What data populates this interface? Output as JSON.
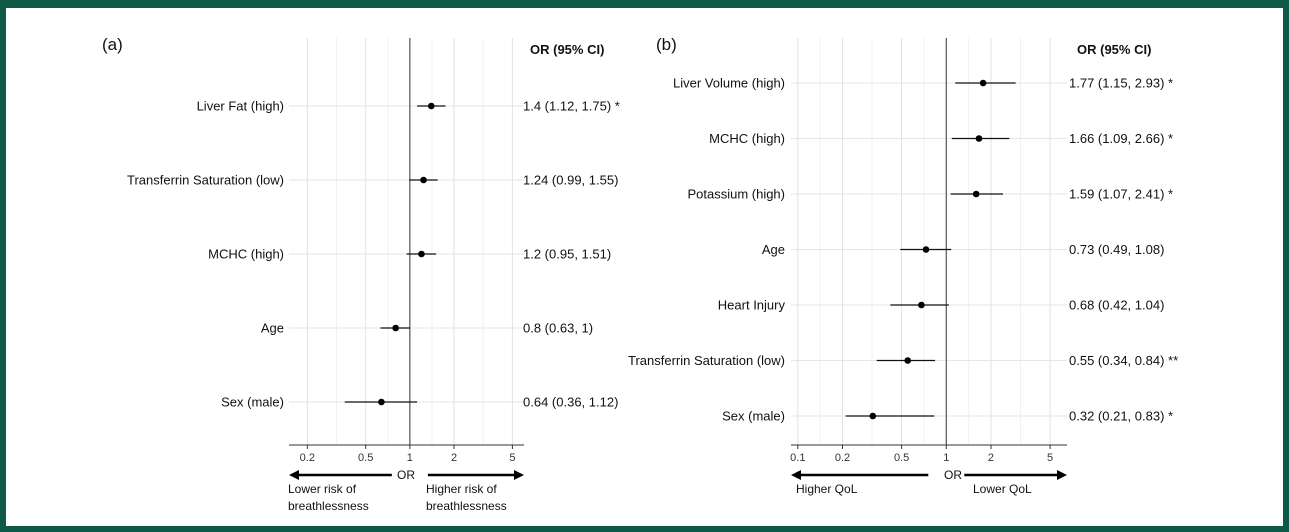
{
  "chart_data": [
    {
      "type": "forest",
      "panel_label": "(a)",
      "ci_header": "OR (95% CI)",
      "xlabel": "OR",
      "xscale": "log",
      "xlim": [
        0.15,
        6
      ],
      "xticks": [
        0.2,
        0.5,
        1,
        2,
        5
      ],
      "xtick_labels": [
        "0.2",
        "0.5",
        "1",
        "2",
        "5"
      ],
      "reference_line": 1,
      "grid": true,
      "direction_left": [
        "Lower risk of",
        "breathlessness"
      ],
      "direction_right": [
        "Higher risk of",
        "breathlessness"
      ],
      "rows": [
        {
          "label": "Liver Fat (high)",
          "or": 1.4,
          "lower": 1.12,
          "upper": 1.75,
          "ci_text": "1.4 (1.12, 1.75) *"
        },
        {
          "label": "Transferrin Saturation (low)",
          "or": 1.24,
          "lower": 0.99,
          "upper": 1.55,
          "ci_text": "1.24 (0.99, 1.55)"
        },
        {
          "label": "MCHC (high)",
          "or": 1.2,
          "lower": 0.95,
          "upper": 1.51,
          "ci_text": "1.2 (0.95, 1.51)"
        },
        {
          "label": "Age",
          "or": 0.8,
          "lower": 0.63,
          "upper": 1.0,
          "ci_text": "0.8 (0.63, 1)"
        },
        {
          "label": "Sex (male)",
          "or": 0.64,
          "lower": 0.36,
          "upper": 1.12,
          "ci_text": "0.64 (0.36, 1.12)"
        }
      ]
    },
    {
      "type": "forest",
      "panel_label": "(b)",
      "ci_header": "OR (95% CI)",
      "xlabel": "OR",
      "xscale": "log",
      "xlim": [
        0.09,
        6.5
      ],
      "xticks": [
        0.1,
        0.2,
        0.5,
        1,
        2,
        5
      ],
      "xtick_labels": [
        "0.1",
        "0.2",
        "0.5",
        "1",
        "2",
        "5"
      ],
      "reference_line": 1,
      "grid": true,
      "direction_left": [
        "Higher QoL"
      ],
      "direction_right": [
        "Lower QoL"
      ],
      "rows": [
        {
          "label": "Liver Volume (high)",
          "or": 1.77,
          "lower": 1.15,
          "upper": 2.93,
          "ci_text": "1.77 (1.15, 2.93) *"
        },
        {
          "label": "MCHC (high)",
          "or": 1.66,
          "lower": 1.09,
          "upper": 2.66,
          "ci_text": "1.66 (1.09, 2.66) *"
        },
        {
          "label": "Potassium (high)",
          "or": 1.59,
          "lower": 1.07,
          "upper": 2.41,
          "ci_text": "1.59 (1.07, 2.41) *"
        },
        {
          "label": "Age",
          "or": 0.73,
          "lower": 0.49,
          "upper": 1.08,
          "ci_text": "0.73 (0.49, 1.08)"
        },
        {
          "label": "Heart Injury",
          "or": 0.68,
          "lower": 0.42,
          "upper": 1.04,
          "ci_text": "0.68 (0.42, 1.04)"
        },
        {
          "label": "Transferrin Saturation (low)",
          "or": 0.55,
          "lower": 0.34,
          "upper": 0.84,
          "ci_text": "0.55 (0.34, 0.84) **"
        },
        {
          "label": "Sex (male)",
          "or": 0.32,
          "lower": 0.21,
          "upper": 0.83,
          "ci_text": "0.32 (0.21, 0.83) *"
        }
      ]
    }
  ]
}
